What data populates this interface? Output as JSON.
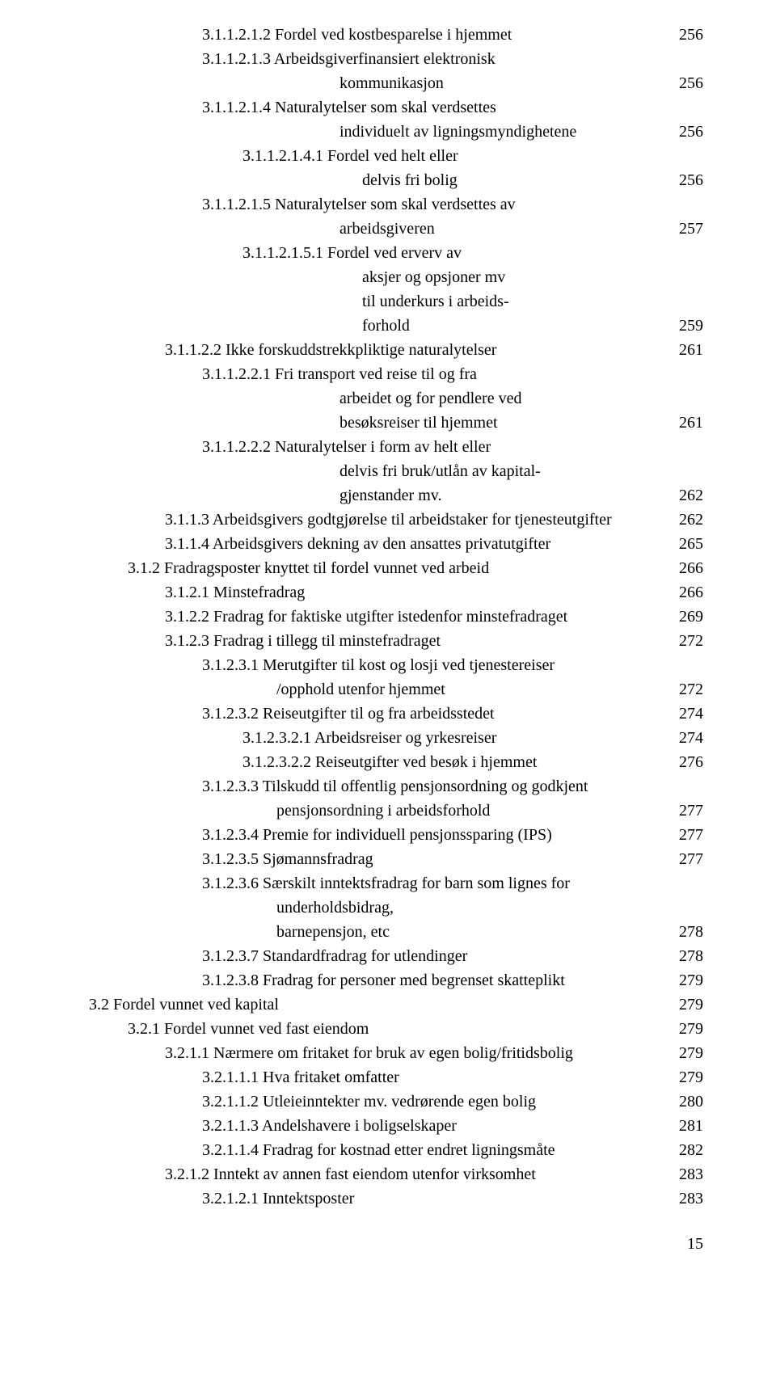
{
  "entries": [
    {
      "indent": 3,
      "text": "3.1.1.2.1.2   Fordel ved kostbesparelse i hjemmet",
      "page": "256"
    },
    {
      "indent": 3,
      "text": "3.1.1.2.1.3   Arbeidsgiverfinansiert elektronisk"
    },
    {
      "cont": "c4",
      "text": "kommunikasjon",
      "page": "256"
    },
    {
      "indent": 3,
      "text": "3.1.1.2.1.4   Naturalytelser som skal verdsettes"
    },
    {
      "cont": "c4",
      "text": "individuelt av ligningsmyndighetene",
      "page": "256"
    },
    {
      "indent": 4,
      "text": "3.1.1.2.1.4.1 Fordel ved helt eller"
    },
    {
      "cont": "c5",
      "text": "delvis fri bolig",
      "page": "256"
    },
    {
      "indent": 3,
      "text": "3.1.1.2.1.5   Naturalytelser som skal verdsettes av"
    },
    {
      "cont": "c4",
      "text": "arbeidsgiveren",
      "page": "257"
    },
    {
      "indent": 4,
      "text": "3.1.1.2.1.5.1 Fordel ved erverv av"
    },
    {
      "cont": "c5",
      "text": "aksjer og opsjoner mv"
    },
    {
      "cont": "c5",
      "text": "til underkurs i arbeids-"
    },
    {
      "cont": "c5",
      "text": "forhold",
      "page": "259"
    },
    {
      "indent": 2,
      "text": "3.1.1.2.2   Ikke forskuddstrekkpliktige naturalytelser",
      "page": "261"
    },
    {
      "indent": 3,
      "text": "3.1.1.2.2.1   Fri transport ved reise til og fra"
    },
    {
      "cont": "c4",
      "text": "arbeidet og for pendlere ved"
    },
    {
      "cont": "c4",
      "text": "besøksreiser til hjemmet",
      "page": "261"
    },
    {
      "indent": 3,
      "text": "3.1.1.2.2.2   Naturalytelser i form av helt eller"
    },
    {
      "cont": "c4",
      "text": "delvis fri bruk/utlån av kapital-"
    },
    {
      "cont": "c4",
      "text": "gjenstander mv.",
      "page": "262"
    },
    {
      "indent": 2,
      "text": "3.1.1.3   Arbeidsgivers godtgjørelse til arbeidstaker for tjenesteutgifter",
      "page": "262"
    },
    {
      "indent": 2,
      "text": "3.1.1.4   Arbeidsgivers dekning av den ansattes privatutgifter",
      "page": "265"
    },
    {
      "indent": 1,
      "text": "3.1.2   Fradragsposter knyttet til fordel vunnet ved arbeid",
      "page": "266"
    },
    {
      "indent": 2,
      "text": "3.1.2.1   Minstefradrag",
      "page": "266"
    },
    {
      "indent": 2,
      "text": "3.1.2.2   Fradrag for faktiske utgifter istedenfor minstefradraget",
      "page": "269"
    },
    {
      "indent": 2,
      "text": "3.1.2.3   Fradrag i tillegg til minstefradraget",
      "page": "272"
    },
    {
      "indent": 3,
      "text": "3.1.2.3.1   Merutgifter til kost og losji ved tjenestereiser"
    },
    {
      "cont": "c3",
      "text": "/opphold utenfor hjemmet",
      "page": "272"
    },
    {
      "indent": 3,
      "text": "3.1.2.3.2   Reiseutgifter til og fra arbeidsstedet",
      "page": "274"
    },
    {
      "indent": 4,
      "text": "3.1.2.3.2.1   Arbeidsreiser og yrkesreiser",
      "page": "274"
    },
    {
      "indent": 4,
      "text": "3.1.2.3.2.2   Reiseutgifter ved besøk i hjemmet",
      "page": "276"
    },
    {
      "indent": 3,
      "text": "3.1.2.3.3   Tilskudd til offentlig pensjonsordning og godkjent"
    },
    {
      "cont": "c3",
      "text": "pensjonsordning i arbeidsforhold",
      "page": "277"
    },
    {
      "indent": 3,
      "text": "3.1.2.3.4   Premie for individuell pensjonssparing (IPS)",
      "page": "277"
    },
    {
      "indent": 3,
      "text": "3.1.2.3.5   Sjømannsfradrag",
      "page": "277"
    },
    {
      "indent": 3,
      "text": "3.1.2.3.6   Særskilt inntektsfradrag for barn som lignes for"
    },
    {
      "cont": "c3",
      "text": "underholdsbidrag,"
    },
    {
      "cont": "c3",
      "text": "barnepensjon, etc",
      "page": "278"
    },
    {
      "indent": 3,
      "text": "3.1.2.3.7   Standardfradrag for utlendinger",
      "page": "278"
    },
    {
      "indent": 3,
      "text": "3.1.2.3.8   Fradrag for personer med begrenset skatteplikt",
      "page": "279"
    },
    {
      "indent": 0,
      "text": "3.2   Fordel vunnet ved kapital",
      "page": "279"
    },
    {
      "indent": 1,
      "text": "3.2.1   Fordel vunnet ved fast eiendom",
      "page": "279"
    },
    {
      "indent": 2,
      "text": "3.2.1.1   Nærmere om fritaket for bruk av egen bolig/fritidsbolig",
      "page": "279"
    },
    {
      "indent": 3,
      "text": "3.2.1.1.1   Hva fritaket omfatter",
      "page": "279"
    },
    {
      "indent": 3,
      "text": "3.2.1.1.2   Utleieinntekter mv. vedrørende egen bolig",
      "page": "280"
    },
    {
      "indent": 3,
      "text": "3.2.1.1.3   Andelshavere i boligselskaper",
      "page": "281"
    },
    {
      "indent": 3,
      "text": "3.2.1.1.4   Fradrag for kostnad etter endret ligningsmåte",
      "page": "282"
    },
    {
      "indent": 2,
      "text": "3.2.1.2   Inntekt av annen fast eiendom utenfor virksomhet",
      "page": "283"
    },
    {
      "indent": 3,
      "text": "3.2.1.2.1   Inntektsposter",
      "page": "283"
    }
  ],
  "footer_page": "15"
}
